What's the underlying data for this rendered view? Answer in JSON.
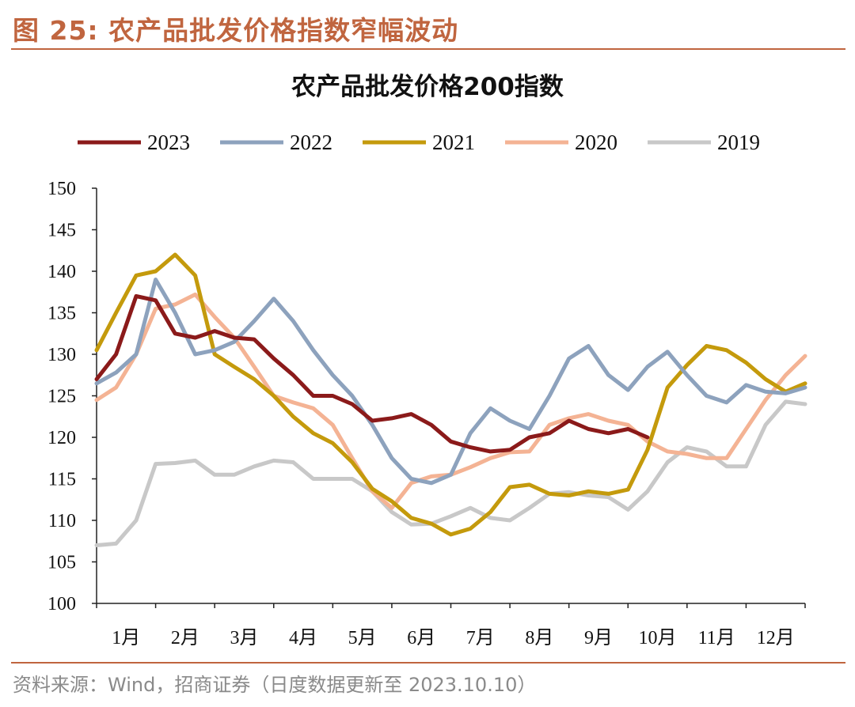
{
  "header": {
    "figure_title": "图 25:  农产品批发价格指数窄幅波动"
  },
  "footer": {
    "source": "资料来源：Wind，招商证券（日度数据更新至 2023.10.10）"
  },
  "chart_data": {
    "type": "line",
    "title": "农产品批发价格200指数",
    "xlabel": "",
    "ylabel": "",
    "ylim": [
      100,
      150
    ],
    "yticks": [
      100,
      105,
      110,
      115,
      120,
      125,
      130,
      135,
      140,
      145,
      150
    ],
    "xlim": [
      1,
      13
    ],
    "xtick_labels": [
      "1月",
      "2月",
      "3月",
      "4月",
      "5月",
      "6月",
      "7月",
      "8月",
      "9月",
      "10月",
      "11月",
      "12月"
    ],
    "legend_position": "top",
    "grid": false,
    "x": [
      1,
      1.33,
      1.67,
      2,
      2.33,
      2.67,
      3,
      3.33,
      3.67,
      4,
      4.33,
      4.67,
      5,
      5.33,
      5.67,
      6,
      6.33,
      6.67,
      7,
      7.33,
      7.67,
      8,
      8.33,
      8.67,
      9,
      9.33,
      9.67,
      10,
      10.33,
      10.67,
      11,
      11.33,
      11.67,
      12,
      12.33,
      12.67,
      13
    ],
    "series": [
      {
        "name": "2023",
        "color": "#8B1A1A",
        "values": [
          127,
          130,
          137,
          136.5,
          132.5,
          132,
          132.8,
          132,
          131.8,
          129.5,
          127.5,
          125,
          125,
          124,
          122,
          122.3,
          122.8,
          121.5,
          119.5,
          118.8,
          118.3,
          118.5,
          120,
          120.5,
          122,
          121,
          120.5,
          121,
          120,
          null,
          null,
          null,
          null,
          null,
          null,
          null,
          null
        ]
      },
      {
        "name": "2022",
        "color": "#8DA2BD",
        "values": [
          126.5,
          127.8,
          130,
          139,
          135,
          130,
          130.5,
          131.5,
          134,
          136.7,
          134,
          130.5,
          127.5,
          125,
          121.5,
          117.5,
          115,
          114.5,
          115.5,
          120.5,
          123.5,
          122,
          121,
          125,
          129.5,
          131,
          127.5,
          125.7,
          128.5,
          130.3,
          127.5,
          125,
          124.2,
          126.3,
          125.5,
          125.3,
          126
        ]
      },
      {
        "name": "2021",
        "color": "#C49A0C",
        "values": [
          130.5,
          135,
          139.5,
          140,
          142,
          139.5,
          130,
          128.5,
          127,
          125,
          122.5,
          120.5,
          119.3,
          117,
          113.8,
          112.3,
          110.3,
          109.6,
          108.3,
          109,
          111,
          114,
          114.3,
          113.2,
          113,
          113.5,
          113.2,
          113.7,
          118.5,
          126,
          128.7,
          131,
          130.5,
          129,
          127,
          125.5,
          126.5
        ]
      },
      {
        "name": "2020",
        "color": "#F4B394",
        "values": [
          124.5,
          126,
          130,
          135.5,
          136,
          137.2,
          134.5,
          132,
          128.5,
          125,
          124.2,
          123.5,
          121.5,
          117.5,
          113.5,
          111.5,
          114.5,
          115.3,
          115.5,
          116.4,
          117.5,
          118.2,
          118.3,
          121.5,
          122.3,
          122.8,
          122,
          121.5,
          119.5,
          118.3,
          118,
          117.5,
          117.5,
          121,
          124.5,
          127.5,
          129.8
        ]
      },
      {
        "name": "2019",
        "color": "#C8C8C8",
        "values": [
          107,
          107.2,
          110,
          116.8,
          116.9,
          117.2,
          115.5,
          115.5,
          116.5,
          117.2,
          117,
          115,
          115,
          115,
          113.5,
          111,
          109.5,
          109.6,
          110.5,
          111.5,
          110.3,
          110,
          111.5,
          113.2,
          113.4,
          113,
          112.8,
          111.3,
          113.5,
          117,
          118.8,
          118.3,
          116.5,
          116.5,
          121.5,
          124.3,
          124
        ]
      }
    ]
  }
}
